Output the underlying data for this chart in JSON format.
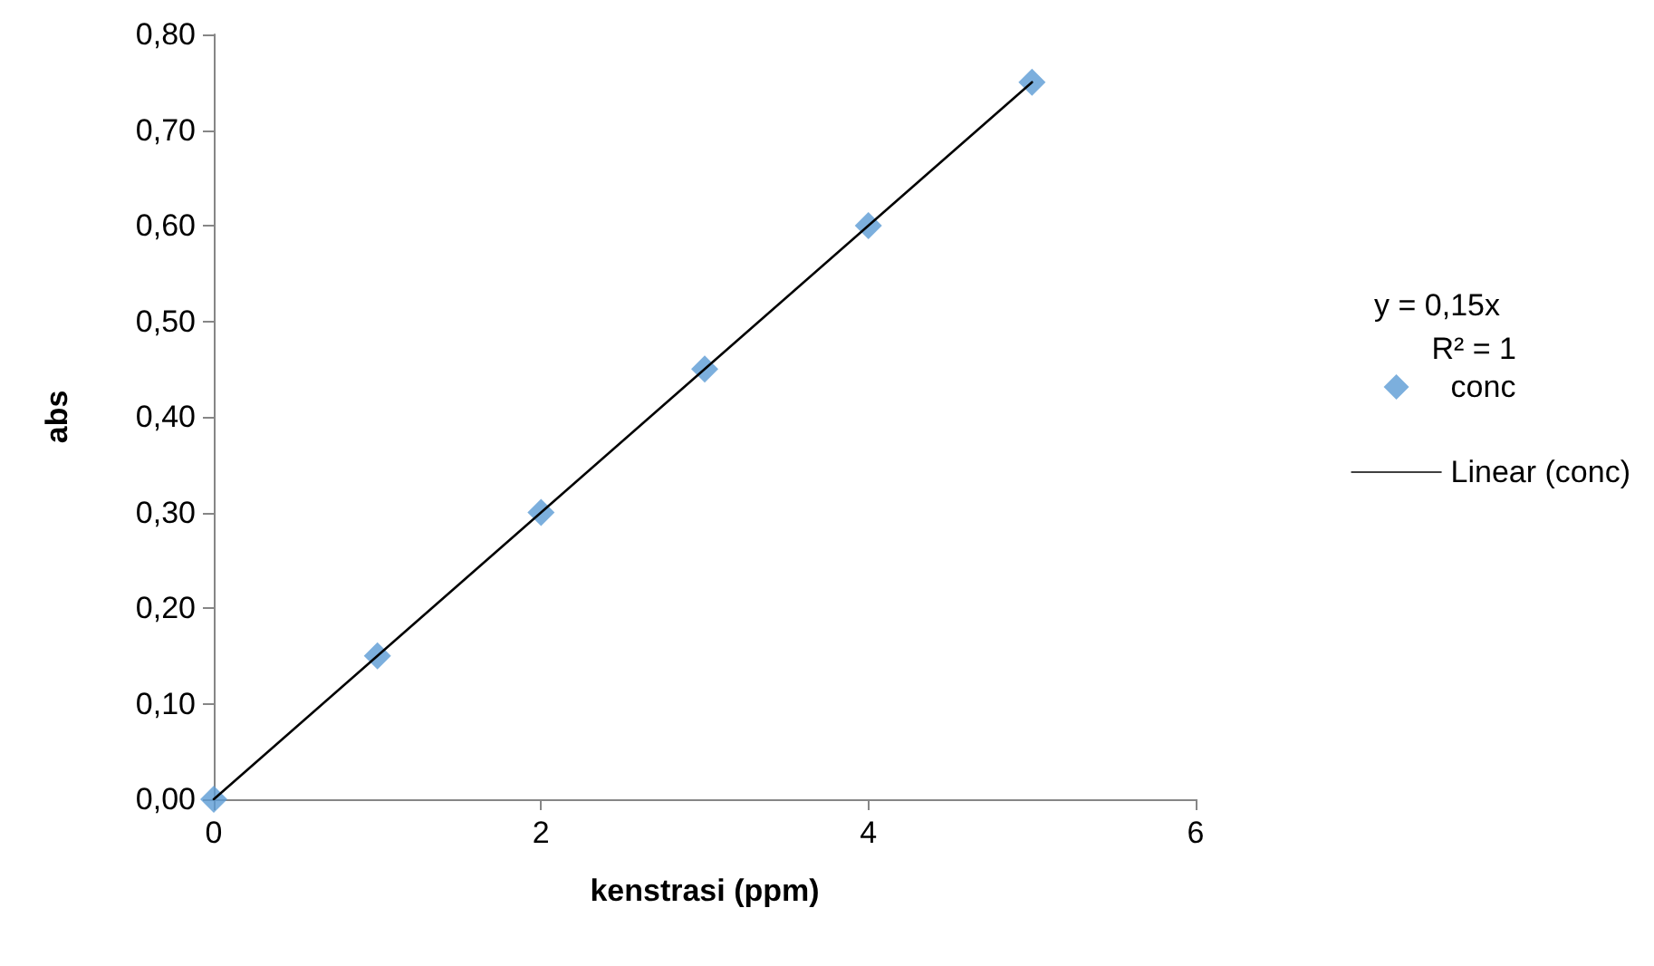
{
  "chart_data": {
    "type": "scatter",
    "xlabel": "kenstrasi (ppm)",
    "ylabel": "abs",
    "x": [
      0,
      1,
      2,
      3,
      4,
      5
    ],
    "series": [
      {
        "name": "conc",
        "color": "#5b9bd5",
        "values": [
          0,
          0.15,
          0.3,
          0.45,
          0.6,
          0.75
        ],
        "marker": "diamond"
      },
      {
        "name": "Linear (conc)",
        "type": "line",
        "color": "#000000",
        "x": [
          0,
          5
        ],
        "values": [
          0,
          0.75
        ],
        "marker": "none",
        "line_style": "solid"
      }
    ],
    "xlim": [
      0,
      6
    ],
    "xticks": [
      0,
      2,
      4,
      6
    ],
    "ylim": [
      0,
      0.8
    ],
    "yticks": [
      {
        "value": 0,
        "label": "0,00"
      },
      {
        "value": 0.1,
        "label": "0,10"
      },
      {
        "value": 0.2,
        "label": "0,20"
      },
      {
        "value": 0.3,
        "label": "0,30"
      },
      {
        "value": 0.4,
        "label": "0,40"
      },
      {
        "value": 0.5,
        "label": "0,50"
      },
      {
        "value": 0.6,
        "label": "0,60"
      },
      {
        "value": 0.7,
        "label": "0,70"
      },
      {
        "value": 0.8,
        "label": "0,80"
      }
    ],
    "annotations": [
      "y = 0,15x",
      "R² = 1"
    ],
    "grid": false,
    "legend": "right"
  }
}
